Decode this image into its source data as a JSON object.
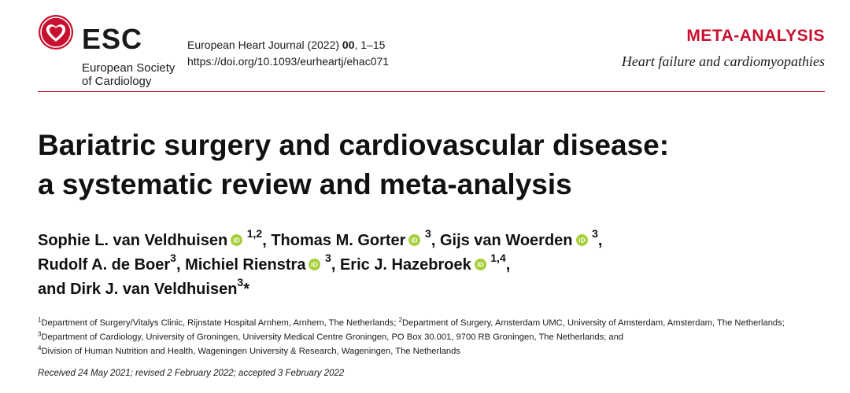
{
  "header": {
    "logo": {
      "acronym": "ESC",
      "name_line1": "European Society",
      "name_line2": "of Cardiology"
    },
    "journal_name": "European Heart Journal",
    "year": "(2022)",
    "volume": "00",
    "pages": ", 1–15",
    "doi": "https://doi.org/10.1093/eurheartj/ehac071",
    "section": "META-ANALYSIS",
    "subsection": "Heart failure and cardiomyopathies"
  },
  "colors": {
    "accent": "#c8102e",
    "orcid": "#a6ce39"
  },
  "article": {
    "title_line1": "Bariatric surgery and cardiovascular disease:",
    "title_line2": "a systematic review and meta-analysis",
    "authors": [
      {
        "name": "Sophie L. van Veldhuisen",
        "aff": "1,2",
        "sep": ", "
      },
      {
        "name": "Thomas M. Gorter",
        "aff": "3",
        "sep": ", "
      },
      {
        "name": "Gijs van Woerden",
        "aff": "3",
        "sep": ","
      },
      {
        "name": "Rudolf A. de Boer",
        "aff": "3",
        "sep": ", "
      },
      {
        "name": "Michiel Rienstra",
        "aff": "3",
        "sep": ", "
      },
      {
        "name": "Eric J. Hazebroek",
        "aff": "1,4",
        "sep": ","
      },
      {
        "name": "and Dirk J. van Veldhuisen",
        "aff": "3",
        "corr": "*"
      }
    ],
    "affiliations": [
      {
        "num": "1",
        "text": "Department of Surgery/Vitalys Clinic, Rijnstate Hospital Arnhem, Arnhem, The Netherlands; "
      },
      {
        "num": "2",
        "text": "Department of Surgery, Amsterdam UMC, University of Amsterdam, Amsterdam, The Netherlands; "
      },
      {
        "num": "3",
        "text": "Department of Cardiology, University of Groningen, University Medical Centre Groningen, PO Box 30.001, 9700 RB Groningen, The Netherlands; and "
      },
      {
        "num": "4",
        "text": "Division of Human Nutrition and Health, Wageningen University & Research, Wageningen, The Netherlands"
      }
    ],
    "received": "Received 24 May 2021; revised 2 February 2022; accepted 3 February 2022"
  }
}
